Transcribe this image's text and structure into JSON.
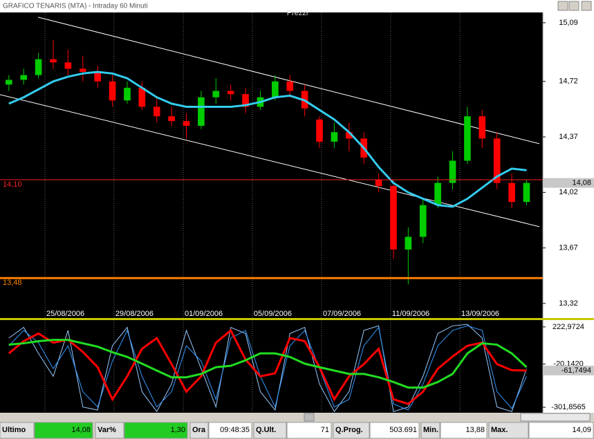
{
  "window": {
    "title": "GRAFICO TENARIS (MTA) - Intraday 60 Minuti"
  },
  "chart_data": [
    {
      "type": "candlestick",
      "title": "Prezzi",
      "open": [
        14.7,
        14.73,
        14.76,
        14.86,
        14.84,
        14.8,
        14.78,
        14.72,
        14.6,
        14.68,
        14.56,
        14.5,
        14.47,
        14.44,
        14.62,
        14.66,
        14.64,
        14.56,
        14.62,
        14.72,
        14.66,
        14.48,
        14.34,
        14.4,
        14.36,
        14.1,
        14.06,
        13.66,
        13.74,
        13.94,
        14.08,
        14.22,
        14.5,
        14.36,
        14.08,
        13.96
      ],
      "high": [
        14.76,
        14.8,
        14.9,
        14.98,
        14.92,
        14.88,
        14.82,
        14.76,
        14.72,
        14.72,
        14.62,
        14.56,
        14.52,
        14.66,
        14.74,
        14.7,
        14.68,
        14.66,
        14.76,
        14.76,
        14.7,
        14.5,
        14.46,
        14.46,
        14.4,
        14.14,
        14.1,
        13.8,
        13.98,
        14.12,
        14.28,
        14.56,
        14.54,
        14.4,
        14.14,
        14.1
      ],
      "low": [
        14.66,
        14.7,
        14.74,
        14.8,
        14.76,
        14.72,
        14.68,
        14.56,
        14.58,
        14.54,
        14.46,
        14.44,
        14.36,
        14.42,
        14.58,
        14.6,
        14.52,
        14.54,
        14.6,
        14.62,
        14.5,
        14.3,
        14.3,
        14.28,
        14.2,
        14.02,
        13.6,
        13.44,
        13.7,
        13.92,
        14.04,
        14.2,
        14.3,
        14.04,
        13.92,
        13.94
      ],
      "close": [
        14.73,
        14.76,
        14.86,
        14.84,
        14.8,
        14.78,
        14.72,
        14.6,
        14.68,
        14.56,
        14.5,
        14.47,
        14.44,
        14.62,
        14.66,
        14.64,
        14.56,
        14.62,
        14.72,
        14.66,
        14.55,
        14.34,
        14.4,
        14.36,
        14.24,
        14.06,
        13.66,
        13.74,
        13.94,
        14.08,
        14.22,
        14.5,
        14.36,
        14.08,
        13.96,
        14.08
      ],
      "up_color": "#00cc00",
      "down_color": "#ff0000",
      "moving_average": {
        "color": "#33ccee",
        "values": [
          14.58,
          14.62,
          14.67,
          14.72,
          14.75,
          14.77,
          14.78,
          14.77,
          14.74,
          14.68,
          14.62,
          14.58,
          14.56,
          14.56,
          14.56,
          14.56,
          14.57,
          14.59,
          14.62,
          14.63,
          14.6,
          14.54,
          14.48,
          14.4,
          14.3,
          14.18,
          14.08,
          14.02,
          13.98,
          13.94,
          13.93,
          13.98,
          14.05,
          14.12,
          14.17,
          14.16
        ]
      },
      "trendlines": [
        {
          "color": "#ffffff",
          "x": [
            1.97,
            35.87
          ],
          "y": [
            15.125,
            14.327
          ]
        },
        {
          "color": "#ffffff",
          "x": [
            -0.6,
            35.87
          ],
          "y": [
            14.637,
            13.804
          ]
        }
      ],
      "levels": [
        {
          "value": 14.1,
          "label": "14,10",
          "color": "#ff2020"
        },
        {
          "value": 13.48,
          "label": "13,48",
          "color": "#ff8000"
        }
      ],
      "last_price": {
        "value": 14.08,
        "label": "14,08"
      },
      "xlim": [
        -0.6,
        36.1
      ],
      "xticks": [
        {
          "value": 2.44,
          "label": "25/08/2006"
        },
        {
          "value": 7.11,
          "label": "29/08/2006"
        },
        {
          "value": 11.79,
          "label": "01/09/2006"
        },
        {
          "value": 16.46,
          "label": "05/09/2006"
        },
        {
          "value": 21.14,
          "label": "07/09/2006"
        },
        {
          "value": 25.81,
          "label": "11/09/2006"
        },
        {
          "value": 30.49,
          "label": "13/09/2006"
        }
      ],
      "ylim": [
        13.228,
        15.155
      ],
      "yticks": [
        {
          "value": 15.09,
          "label": "15,09"
        },
        {
          "value": 14.72,
          "label": "14,72"
        },
        {
          "value": 14.37,
          "label": "14,37"
        },
        {
          "value": 14.02,
          "label": "14,02"
        },
        {
          "value": 13.67,
          "label": "13,67"
        },
        {
          "value": 13.32,
          "label": "13,32"
        }
      ]
    },
    {
      "type": "line",
      "series": [
        {
          "color": "#99ccff",
          "values": [
            150,
            220,
            50,
            -100,
            200,
            -300,
            -320,
            100,
            220,
            -200,
            -330,
            -150,
            200,
            -50,
            -300,
            220,
            180,
            -200,
            -320,
            180,
            220,
            -150,
            -330,
            -200,
            200,
            230,
            -330,
            -300,
            -100,
            180,
            230,
            240,
            150,
            -300,
            -330,
            -50
          ]
        },
        {
          "color": "#3399ff",
          "values": [
            100,
            200,
            120,
            -50,
            100,
            -200,
            -300,
            0,
            200,
            -100,
            -300,
            -200,
            100,
            0,
            -250,
            150,
            200,
            -100,
            -300,
            100,
            200,
            -50,
            -300,
            -250,
            100,
            220,
            -280,
            -320,
            -150,
            100,
            200,
            230,
            200,
            -200,
            -310,
            -100
          ]
        },
        {
          "color": "#ff0000",
          "values": [
            50,
            130,
            180,
            120,
            140,
            60,
            -40,
            -250,
            -100,
            80,
            150,
            -20,
            -200,
            -100,
            120,
            200,
            10,
            -100,
            -80,
            150,
            130,
            -40,
            -250,
            -100,
            -20,
            80,
            -250,
            -280,
            -200,
            -50,
            30,
            100,
            120,
            -20,
            -60,
            -62
          ]
        },
        {
          "color": "#22dd22",
          "values": [
            107,
            116,
            130,
            138,
            138,
            116,
            94,
            58,
            27,
            -17,
            -62,
            -106,
            -106,
            -84,
            -40,
            -31,
            5,
            50,
            50,
            27,
            -17,
            -40,
            -62,
            -84,
            -84,
            -106,
            -137,
            -173,
            -173,
            -137,
            -84,
            50,
            116,
            107,
            50,
            -40
          ]
        }
      ],
      "last_value": {
        "value": -61.7494,
        "label": "-61,7494"
      },
      "xlim": [
        -0.6,
        36.1
      ],
      "ylim": [
        -333,
        263
      ],
      "yticks": [
        {
          "value": 222.9724,
          "label": "222,9724"
        },
        {
          "value": -20.142,
          "label": "-20,1420"
        },
        {
          "value": -301.8565,
          "label": "-301,8565"
        }
      ]
    }
  ],
  "status_bar": {
    "fields": [
      {
        "label": "Ultimo",
        "value": "14,08"
      },
      {
        "label": "Var%",
        "value": "1,30"
      },
      {
        "label": "Ora",
        "value": "09:48:35"
      },
      {
        "label": "Q.Ult.",
        "value": "71"
      },
      {
        "label": "Q.Prog.",
        "value": "503.691"
      },
      {
        "label": "Min.",
        "value": "13,88"
      },
      {
        "label": "Max.",
        "value": "14,09"
      }
    ]
  }
}
